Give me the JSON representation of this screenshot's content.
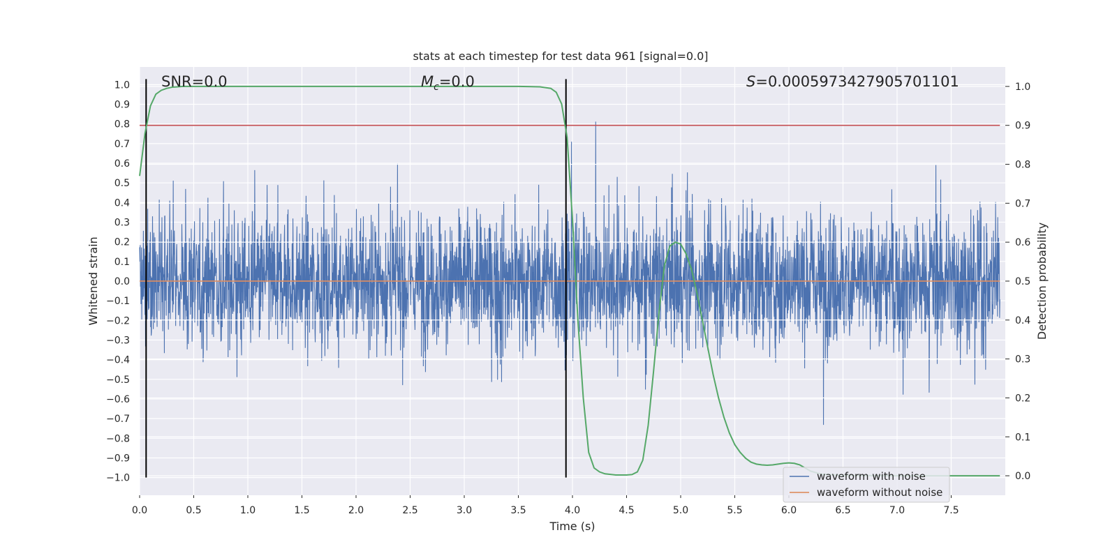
{
  "chart_data": {
    "type": "line",
    "title": "stats at each timestep for test data 961 [signal=0.0]",
    "xlabel": "Time (s)",
    "ylabel": "Whitened strain",
    "y2label": "Detection probability",
    "xlim": [
      0.0,
      8.0
    ],
    "ylim": [
      -1.09,
      1.09
    ],
    "y2lim": [
      -0.05,
      1.05
    ],
    "xticks": [
      0.0,
      0.5,
      1.0,
      1.5,
      2.0,
      2.5,
      3.0,
      3.5,
      4.0,
      4.5,
      5.0,
      5.5,
      6.0,
      6.5,
      7.0,
      7.5
    ],
    "yticks": [
      -1.0,
      -0.9,
      -0.8,
      -0.7,
      -0.6,
      -0.5,
      -0.4,
      -0.3,
      -0.2,
      -0.1,
      0.0,
      0.1,
      0.2,
      0.3,
      0.4,
      0.5,
      0.6,
      0.7,
      0.8,
      0.9,
      1.0
    ],
    "y2ticks": [
      0.0,
      0.1,
      0.2,
      0.3,
      0.4,
      0.5,
      0.6,
      0.7,
      0.8,
      0.9,
      1.0
    ],
    "grid": true,
    "legend_placement": "lower-right",
    "annotations": {
      "snr": "SNR=0.0",
      "mc_symbol": "M",
      "mc_sub": "c",
      "mc_value": "=0.0",
      "s_symbol": "S",
      "s_value": "=0.0005973427905701101"
    },
    "legend": {
      "noise": "waveform with noise",
      "clean": "waveform without noise"
    },
    "colors": {
      "noisy": "#4c72b0",
      "clean": "#dd8452",
      "probability": "#55a868",
      "threshold": "#c44e52",
      "marker": "#000000",
      "background": "#eaeaf2",
      "grid": "#ffffff"
    },
    "vertical_markers_x": [
      0.06,
      3.94
    ],
    "threshold_prob": 0.9,
    "clean_waveform_value": 0.0,
    "noise_envelope": {
      "min": -1.0,
      "max": 1.0
    },
    "series": [
      {
        "name": "waveform with noise",
        "axis": "left",
        "sampling": "dense noise, 0-8 s",
        "approx_range": [
          -1.0,
          1.0
        ]
      },
      {
        "name": "waveform without noise",
        "axis": "left",
        "x": [
          0.0,
          8.0
        ],
        "y": [
          0.0,
          0.0
        ]
      },
      {
        "name": "detection probability",
        "axis": "right",
        "x": [
          0.0,
          0.05,
          0.1,
          0.15,
          0.2,
          0.25,
          0.3,
          0.35,
          0.4,
          0.5,
          0.6,
          0.8,
          1.0,
          1.5,
          2.0,
          2.5,
          3.0,
          3.5,
          3.7,
          3.8,
          3.85,
          3.9,
          3.95,
          4.0,
          4.05,
          4.1,
          4.15,
          4.2,
          4.25,
          4.3,
          4.4,
          4.5,
          4.55,
          4.6,
          4.65,
          4.7,
          4.75,
          4.8,
          4.85,
          4.9,
          4.95,
          5.0,
          5.05,
          5.1,
          5.15,
          5.2,
          5.25,
          5.3,
          5.35,
          5.4,
          5.45,
          5.5,
          5.55,
          5.6,
          5.65,
          5.7,
          5.75,
          5.8,
          5.85,
          5.9,
          5.95,
          6.0,
          6.05,
          6.1,
          6.15,
          6.2,
          6.3,
          6.5,
          7.0,
          7.5,
          7.95
        ],
        "y": [
          0.77,
          0.88,
          0.95,
          0.98,
          0.99,
          0.995,
          0.998,
          0.999,
          1.0,
          1.0,
          1.0,
          1.0,
          1.0,
          1.0,
          1.0,
          1.0,
          1.0,
          1.0,
          0.999,
          0.995,
          0.985,
          0.955,
          0.87,
          0.66,
          0.4,
          0.2,
          0.06,
          0.02,
          0.01,
          0.005,
          0.002,
          0.002,
          0.003,
          0.01,
          0.04,
          0.13,
          0.27,
          0.42,
          0.54,
          0.59,
          0.6,
          0.595,
          0.57,
          0.53,
          0.47,
          0.4,
          0.33,
          0.26,
          0.2,
          0.15,
          0.11,
          0.08,
          0.06,
          0.045,
          0.035,
          0.03,
          0.028,
          0.027,
          0.028,
          0.03,
          0.032,
          0.033,
          0.032,
          0.028,
          0.02,
          0.012,
          0.004,
          0.001,
          0.0,
          0.0,
          0.0
        ]
      }
    ]
  }
}
